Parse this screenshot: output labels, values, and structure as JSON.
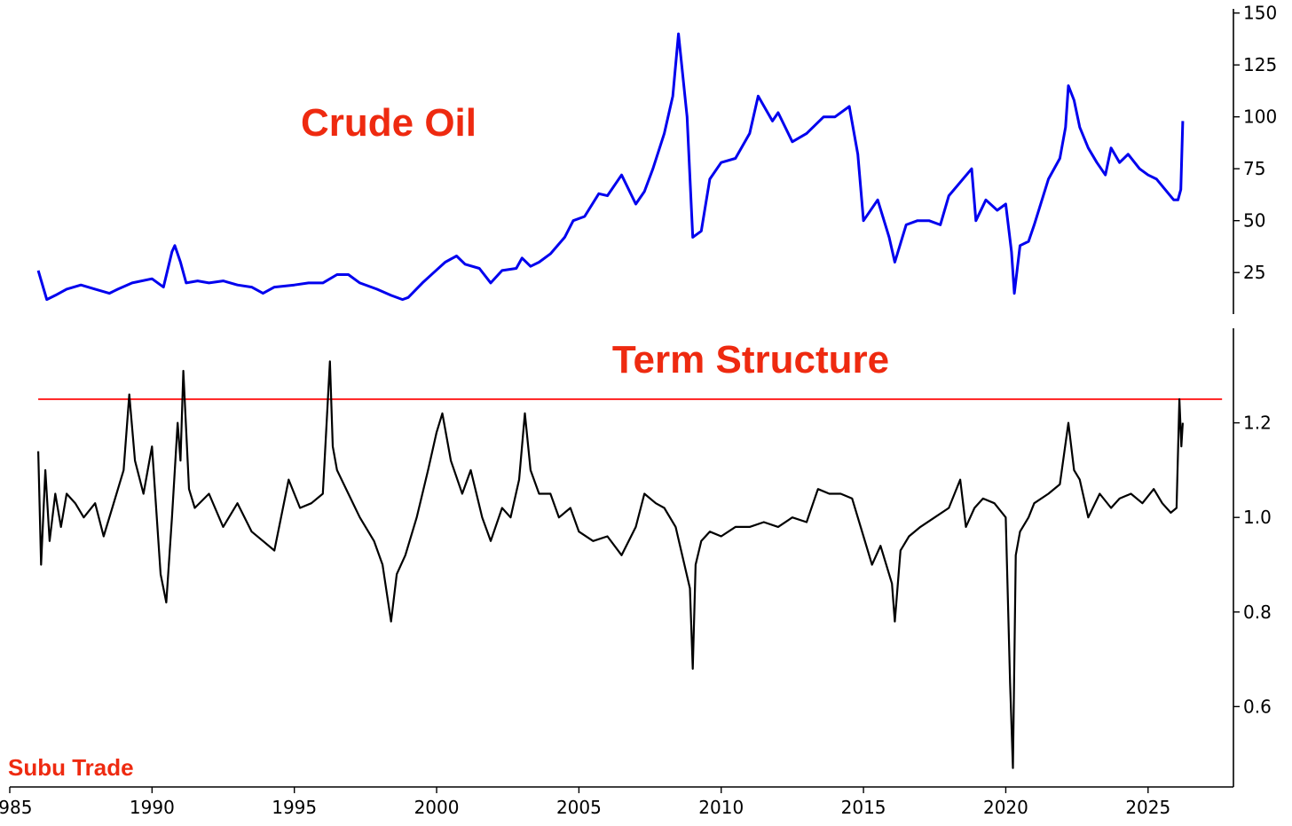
{
  "watermark": "Subu Trade",
  "colors": {
    "accent": "#ee2a10",
    "oil_line": "#0000ee",
    "term_line": "#000000",
    "threshold_line": "#ff1a1a"
  },
  "chart_data": [
    {
      "type": "line",
      "title": "Crude Oil",
      "xlabel": "",
      "ylabel": "",
      "xlim": [
        1985,
        2028
      ],
      "ylim": [
        5,
        152
      ],
      "x_ticks": [
        1985,
        1990,
        1995,
        2000,
        2005,
        2010,
        2015,
        2020,
        2025
      ],
      "y_ticks": [
        25,
        50,
        75,
        100,
        125,
        150
      ],
      "y_axis_position": "right",
      "grid": false,
      "series": [
        {
          "color": "#0000ee",
          "x": [
            1986.0,
            1986.3,
            1986.6,
            1987.0,
            1987.5,
            1988.0,
            1988.5,
            1988.8,
            1989.3,
            1990.0,
            1990.4,
            1990.7,
            1990.8,
            1991.0,
            1991.2,
            1991.6,
            1992.0,
            1992.5,
            1993.0,
            1993.5,
            1993.9,
            1994.3,
            1995.0,
            1995.5,
            1996.0,
            1996.5,
            1996.9,
            1997.3,
            1997.9,
            1998.4,
            1998.8,
            1999.0,
            1999.5,
            1999.9,
            2000.3,
            2000.7,
            2001.0,
            2001.5,
            2001.9,
            2002.3,
            2002.8,
            2003.0,
            2003.3,
            2003.6,
            2004.0,
            2004.5,
            2004.8,
            2005.2,
            2005.7,
            2006.0,
            2006.5,
            2007.0,
            2007.3,
            2007.6,
            2008.0,
            2008.3,
            2008.5,
            2008.8,
            2009.0,
            2009.3,
            2009.6,
            2010.0,
            2010.5,
            2011.0,
            2011.3,
            2011.8,
            2012.0,
            2012.5,
            2013.0,
            2013.6,
            2014.0,
            2014.5,
            2014.8,
            2015.0,
            2015.5,
            2015.9,
            2016.1,
            2016.5,
            2016.9,
            2017.3,
            2017.7,
            2018.0,
            2018.8,
            2018.95,
            2019.3,
            2019.7,
            2020.0,
            2020.2,
            2020.3,
            2020.5,
            2020.8,
            2021.0,
            2021.5,
            2021.9,
            2022.1,
            2022.2,
            2022.4,
            2022.6,
            2022.9,
            2023.2,
            2023.5,
            2023.7,
            2024.0,
            2024.3,
            2024.7,
            2025.0,
            2025.3,
            2025.6,
            2025.9,
            2026.05,
            2026.15,
            2026.22
          ],
          "y": [
            26,
            12,
            14,
            17,
            19,
            17,
            15,
            17,
            20,
            22,
            18,
            35,
            38,
            30,
            20,
            21,
            20,
            21,
            19,
            18,
            15,
            18,
            19,
            20,
            20,
            24,
            24,
            20,
            17,
            14,
            12,
            13,
            20,
            25,
            30,
            33,
            29,
            27,
            20,
            26,
            27,
            32,
            28,
            30,
            34,
            42,
            50,
            52,
            63,
            62,
            72,
            58,
            64,
            75,
            92,
            110,
            140,
            100,
            42,
            45,
            70,
            78,
            80,
            92,
            110,
            98,
            102,
            88,
            92,
            100,
            100,
            105,
            82,
            50,
            60,
            42,
            30,
            48,
            50,
            50,
            48,
            62,
            75,
            50,
            60,
            55,
            58,
            35,
            15,
            38,
            40,
            48,
            70,
            80,
            95,
            115,
            108,
            95,
            85,
            78,
            72,
            85,
            78,
            82,
            75,
            72,
            70,
            65,
            60,
            60,
            65,
            98
          ]
        }
      ]
    },
    {
      "type": "line",
      "title": "Term Structure",
      "xlabel": "",
      "ylabel": "",
      "xlim": [
        1985,
        2028
      ],
      "ylim": [
        0.43,
        1.4
      ],
      "x_ticks": [
        1985,
        1990,
        1995,
        2000,
        2005,
        2010,
        2015,
        2020,
        2025
      ],
      "x_tick_labels": [
        "1985",
        "1990",
        "1995",
        "2000",
        "2005",
        "2010",
        "2015",
        "2020",
        "2025"
      ],
      "y_ticks": [
        0.6,
        0.8,
        1.0,
        1.2
      ],
      "y_tick_labels": [
        "0.6",
        "0.8",
        "1.0",
        "1.2"
      ],
      "y_axis_position": "right",
      "reference_line": {
        "y": 1.25,
        "color": "#ff1a1a"
      },
      "grid": false,
      "series": [
        {
          "color": "#000000",
          "x": [
            1986.0,
            1986.1,
            1986.25,
            1986.4,
            1986.6,
            1986.8,
            1987.0,
            1987.3,
            1987.6,
            1988.0,
            1988.3,
            1988.6,
            1989.0,
            1989.2,
            1989.4,
            1989.7,
            1990.0,
            1990.3,
            1990.5,
            1990.7,
            1990.9,
            1991.0,
            1991.1,
            1991.3,
            1991.5,
            1992.0,
            1992.5,
            1993.0,
            1993.5,
            1993.9,
            1994.3,
            1994.8,
            1995.2,
            1995.6,
            1996.0,
            1996.25,
            1996.35,
            1996.5,
            1996.9,
            1997.3,
            1997.8,
            1998.1,
            1998.4,
            1998.6,
            1998.9,
            1999.3,
            1999.7,
            2000.0,
            2000.2,
            2000.5,
            2000.9,
            2001.2,
            2001.6,
            2001.9,
            2002.3,
            2002.6,
            2002.9,
            2003.1,
            2003.3,
            2003.6,
            2004.0,
            2004.3,
            2004.7,
            2005.0,
            2005.5,
            2006.0,
            2006.5,
            2007.0,
            2007.3,
            2007.7,
            2008.0,
            2008.4,
            2008.9,
            2009.0,
            2009.1,
            2009.3,
            2009.6,
            2010.0,
            2010.5,
            2011.0,
            2011.5,
            2012.0,
            2012.5,
            2013.0,
            2013.4,
            2013.8,
            2014.2,
            2014.6,
            2015.0,
            2015.3,
            2015.6,
            2016.0,
            2016.1,
            2016.3,
            2016.6,
            2017.0,
            2017.5,
            2018.0,
            2018.4,
            2018.6,
            2018.9,
            2019.2,
            2019.6,
            2020.0,
            2020.15,
            2020.25,
            2020.35,
            2020.5,
            2020.8,
            2021.0,
            2021.5,
            2021.9,
            2022.2,
            2022.4,
            2022.6,
            2022.9,
            2023.3,
            2023.7,
            2024.0,
            2024.4,
            2024.8,
            2025.2,
            2025.5,
            2025.8,
            2026.0,
            2026.1,
            2026.17,
            2026.22
          ],
          "y": [
            1.14,
            0.9,
            1.1,
            0.95,
            1.05,
            0.98,
            1.05,
            1.03,
            1.0,
            1.03,
            0.96,
            1.02,
            1.1,
            1.26,
            1.12,
            1.05,
            1.15,
            0.88,
            0.82,
            1.0,
            1.2,
            1.12,
            1.31,
            1.06,
            1.02,
            1.05,
            0.98,
            1.03,
            0.97,
            0.95,
            0.93,
            1.08,
            1.02,
            1.03,
            1.05,
            1.33,
            1.15,
            1.1,
            1.05,
            1.0,
            0.95,
            0.9,
            0.78,
            0.88,
            0.92,
            1.0,
            1.1,
            1.18,
            1.22,
            1.12,
            1.05,
            1.1,
            1.0,
            0.95,
            1.02,
            1.0,
            1.08,
            1.22,
            1.1,
            1.05,
            1.05,
            1.0,
            1.02,
            0.97,
            0.95,
            0.96,
            0.92,
            0.98,
            1.05,
            1.03,
            1.02,
            0.98,
            0.85,
            0.68,
            0.9,
            0.95,
            0.97,
            0.96,
            0.98,
            0.98,
            0.99,
            0.98,
            1.0,
            0.99,
            1.06,
            1.05,
            1.05,
            1.04,
            0.96,
            0.9,
            0.94,
            0.86,
            0.78,
            0.93,
            0.96,
            0.98,
            1.0,
            1.02,
            1.08,
            0.98,
            1.02,
            1.04,
            1.03,
            1.0,
            0.65,
            0.47,
            0.92,
            0.97,
            1.0,
            1.03,
            1.05,
            1.07,
            1.2,
            1.1,
            1.08,
            1.0,
            1.05,
            1.02,
            1.04,
            1.05,
            1.03,
            1.06,
            1.03,
            1.01,
            1.02,
            1.25,
            1.15,
            1.2
          ]
        }
      ]
    }
  ]
}
